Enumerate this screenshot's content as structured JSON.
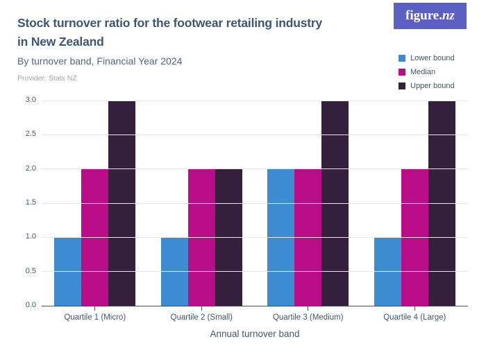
{
  "header": {
    "title_line1": "Stock turnover ratio for the footwear retailing industry",
    "title_line2": "in New Zealand",
    "subtitle": "By turnover band, Financial Year 2024",
    "provider": "Provider: Stats NZ"
  },
  "logo": {
    "text": "figure.",
    "text_italic": "nz",
    "background": "#5B5FC2"
  },
  "legend": [
    {
      "label": "Lower bound",
      "color": "#3D8BD1"
    },
    {
      "label": "Median",
      "color": "#B80D86"
    },
    {
      "label": "Upper bound",
      "color": "#34203C"
    }
  ],
  "chart_data": {
    "type": "bar",
    "title": "Stock turnover ratio for the footwear retailing industry in New Zealand",
    "subtitle": "By turnover band, Financial Year 2024",
    "categories": [
      "Quartile 1 (Micro)",
      "Quartile 2 (Small)",
      "Quartile 3 (Medium)",
      "Quartile 4 (Large)"
    ],
    "series": [
      {
        "name": "Lower bound",
        "color": "#3D8BD1",
        "values": [
          1.0,
          1.0,
          2.0,
          1.0
        ]
      },
      {
        "name": "Median",
        "color": "#B80D86",
        "values": [
          2.0,
          2.0,
          2.0,
          2.0
        ]
      },
      {
        "name": "Upper bound",
        "color": "#34203C",
        "values": [
          3.0,
          2.0,
          3.0,
          3.0
        ]
      }
    ],
    "xlabel": "Annual turnover band",
    "ylabel": "",
    "ylim": [
      0,
      3
    ],
    "yticks": [
      "0.0",
      "0.5",
      "1.0",
      "1.5",
      "2.0",
      "2.5",
      "3.0"
    ],
    "grid": true,
    "legend_position": "top-right",
    "colors": {
      "lower_bound": "#3D8BD1",
      "median": "#B80D86",
      "upper_bound": "#34203C"
    }
  }
}
